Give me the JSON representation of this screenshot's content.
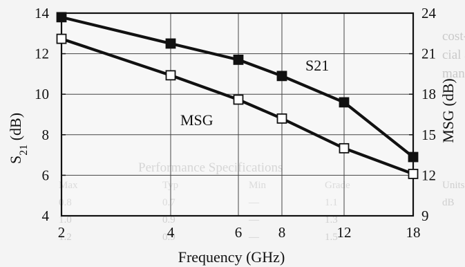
{
  "chart_data": {
    "type": "line",
    "x": [
      "2",
      "4",
      "6",
      "8",
      "12",
      "18"
    ],
    "xlabel": "Frequency (GHz)",
    "ylabel_left": "S21 (dB)",
    "ylabel_right": "MSG (dB)",
    "ylim_left": [
      4,
      14
    ],
    "ylim_right": [
      9,
      24
    ],
    "yticks_left": [
      4,
      6,
      8,
      10,
      12,
      14
    ],
    "yticks_right": [
      9,
      12,
      15,
      18,
      21,
      24
    ],
    "grid": true,
    "series": [
      {
        "name": "S21",
        "axis": "left",
        "marker": "filled-square",
        "values": [
          13.8,
          12.5,
          11.7,
          10.9,
          9.6,
          6.9
        ]
      },
      {
        "name": "MSG",
        "axis": "right",
        "marker": "open-square",
        "values": [
          22.1,
          19.4,
          17.6,
          16.2,
          14.0,
          12.1
        ]
      }
    ]
  },
  "background_text": {
    "line1": "cost-effective family of devices is ideally suited for commer-",
    "line2": "cial applications and where reliability, perfor-",
    "line3": "mance and value are critical.",
    "table_title": "Performance Specifications",
    "headers": [
      "Units",
      "Grade",
      "Min",
      "Typ",
      "Max"
    ],
    "row1": [
      "dB",
      "1.1",
      "—",
      "0.7",
      "0.8"
    ],
    "row2": [
      "",
      "1.3",
      "—",
      "0.9",
      "1.0"
    ],
    "row3": [
      "",
      "1.5",
      "—",
      "0.9",
      "1.2"
    ]
  }
}
